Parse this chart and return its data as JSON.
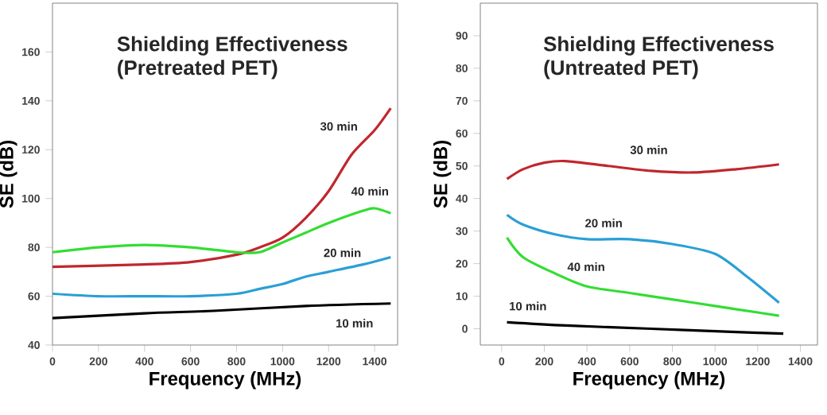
{
  "chart_data": [
    {
      "type": "line",
      "title": "Shielding Effectiveness",
      "subtitle": "(Pretreated PET)",
      "xlabel": "Frequency (MHz)",
      "ylabel": "SE (dB)",
      "xlim": [
        0,
        1500
      ],
      "ylim": [
        40,
        180
      ],
      "xticks": [
        0,
        200,
        400,
        600,
        800,
        1000,
        1200,
        1400
      ],
      "yticks": [
        40,
        60,
        80,
        100,
        120,
        140,
        160
      ],
      "grid": false,
      "marker": "none",
      "line_style": "solid",
      "series": [
        {
          "name": "30 min",
          "color": "#c0272d",
          "x": [
            0,
            400,
            600,
            800,
            900,
            1000,
            1100,
            1200,
            1300,
            1400,
            1470
          ],
          "values": [
            72,
            73,
            74,
            77,
            80,
            84,
            92,
            103,
            118,
            128,
            137
          ]
        },
        {
          "name": "40 min",
          "color": "#33dd33",
          "x": [
            0,
            200,
            400,
            600,
            800,
            900,
            1000,
            1100,
            1200,
            1350,
            1400,
            1470
          ],
          "values": [
            78,
            80,
            81,
            80,
            78,
            78,
            82,
            86,
            90,
            95,
            96,
            94
          ]
        },
        {
          "name": "20 min",
          "color": "#2a9fd6",
          "x": [
            0,
            200,
            400,
            600,
            800,
            900,
            1000,
            1100,
            1200,
            1350,
            1470
          ],
          "values": [
            61,
            60,
            60,
            60,
            61,
            63,
            65,
            68,
            70,
            73,
            76
          ]
        },
        {
          "name": "10 min",
          "color": "#000000",
          "x": [
            0,
            400,
            700,
            1100,
            1470
          ],
          "values": [
            51,
            53,
            54,
            56,
            57
          ]
        }
      ]
    },
    {
      "type": "line",
      "title": "Shielding Effectiveness",
      "subtitle": "(Untreated PET)",
      "xlabel": "Frequency (MHz)",
      "ylabel": "SE (dB)",
      "xlim": [
        -100,
        1480
      ],
      "ylim": [
        -5,
        100
      ],
      "xticks": [
        0,
        200,
        400,
        600,
        800,
        1000,
        1200,
        1400
      ],
      "yticks": [
        0,
        10,
        20,
        30,
        40,
        50,
        60,
        70,
        80,
        90
      ],
      "grid": false,
      "marker": "none",
      "line_style": "solid",
      "series": [
        {
          "name": "30 min",
          "color": "#c0272d",
          "x": [
            25,
            100,
            200,
            300,
            500,
            700,
            900,
            1100,
            1300
          ],
          "values": [
            46,
            49,
            51,
            51.5,
            50,
            48.5,
            48,
            49,
            50.5
          ]
        },
        {
          "name": "20 min",
          "color": "#2a9fd6",
          "x": [
            25,
            100,
            250,
            400,
            600,
            800,
            1000,
            1150,
            1300
          ],
          "values": [
            35,
            32,
            29,
            27.5,
            27.5,
            26,
            23,
            16,
            8
          ]
        },
        {
          "name": "40 min",
          "color": "#33dd33",
          "x": [
            25,
            100,
            250,
            400,
            600,
            800,
            1000,
            1200,
            1300
          ],
          "values": [
            28,
            22,
            17,
            13,
            11,
            9,
            7,
            5,
            4
          ]
        },
        {
          "name": "10 min",
          "color": "#000000",
          "x": [
            25,
            300,
            700,
            1100,
            1320
          ],
          "values": [
            2,
            1,
            0,
            -1,
            -1.5
          ]
        }
      ]
    }
  ]
}
